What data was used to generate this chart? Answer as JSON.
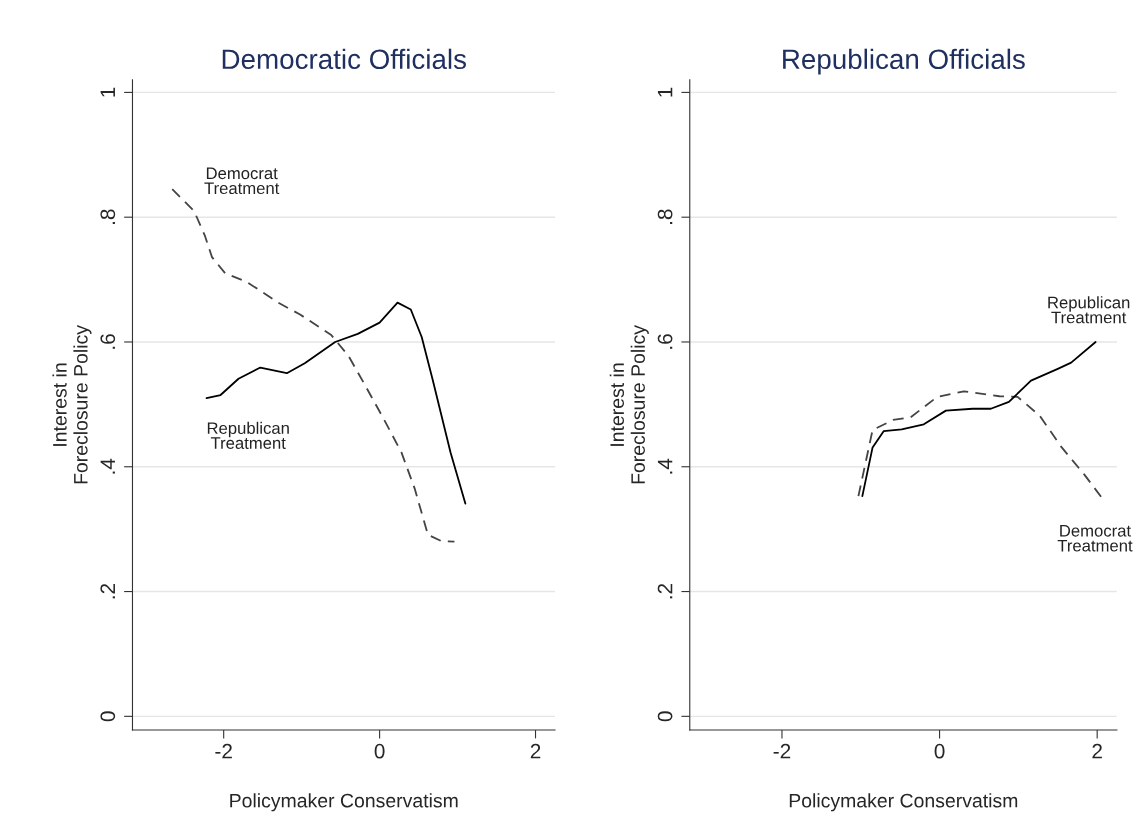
{
  "chart_data": [
    {
      "type": "line",
      "title": "Democratic Officials",
      "xlabel": "Policymaker Conservatism",
      "ylabel": "Interest in\nForeclosure Policy",
      "xlim": [
        -3.17,
        2.25
      ],
      "ylim": [
        -0.022,
        1.02
      ],
      "xticks": [
        -2,
        0,
        2
      ],
      "yticks": [
        0,
        {
          "value": 0.2,
          "label": ".2"
        },
        {
          "value": 0.4,
          "label": ".4"
        },
        {
          "value": 0.6,
          "label": ".6"
        },
        {
          "value": 0.8,
          "label": ".8"
        },
        1
      ],
      "grid": "y",
      "series": [
        {
          "name": "Democrat\nTreatment",
          "color": "#444444",
          "line_style": "dashed",
          "x": [
            -2.66,
            -2.38,
            -2.24,
            -2.15,
            -1.98,
            -1.7,
            -1.3,
            -1.02,
            -0.62,
            -0.4,
            -0.17,
            0.06,
            0.28,
            0.45,
            0.62,
            0.79,
            0.96
          ],
          "values": [
            0.845,
            0.81,
            0.77,
            0.736,
            0.71,
            0.696,
            0.663,
            0.644,
            0.611,
            0.578,
            0.527,
            0.475,
            0.423,
            0.365,
            0.291,
            0.281,
            0.28
          ]
        },
        {
          "name": "Republican\nTreatment",
          "color": "#000000",
          "line_style": "solid",
          "x": [
            -2.22,
            -2.04,
            -1.81,
            -1.53,
            -1.19,
            -0.96,
            -0.57,
            -0.28,
            0,
            0.23,
            0.4,
            0.54,
            0.68,
            0.91,
            1.1
          ],
          "values": [
            0.51,
            0.515,
            0.541,
            0.559,
            0.55,
            0.566,
            0.6,
            0.613,
            0.631,
            0.663,
            0.652,
            0.608,
            0.54,
            0.423,
            0.341
          ]
        }
      ]
    },
    {
      "type": "line",
      "title": "Republican Officials",
      "xlabel": "Policymaker Conservatism",
      "ylabel": "Interest in\nForeclosure Policy",
      "xlim": [
        -3.17,
        2.25
      ],
      "ylim": [
        -0.022,
        1.02
      ],
      "xticks": [
        -2,
        0,
        2
      ],
      "yticks": [
        0,
        {
          "value": 0.2,
          "label": ".2"
        },
        {
          "value": 0.4,
          "label": ".4"
        },
        {
          "value": 0.6,
          "label": ".6"
        },
        {
          "value": 0.8,
          "label": ".8"
        },
        1
      ],
      "grid": "y",
      "series": [
        {
          "name": "Democrat\nTreatment",
          "color": "#444444",
          "line_style": "dashed",
          "x": [
            -1.03,
            -0.85,
            -0.59,
            -0.37,
            -0.03,
            0.31,
            0.76,
            0.99,
            1.27,
            1.55,
            1.84,
            2.06
          ],
          "values": [
            0.353,
            0.459,
            0.475,
            0.479,
            0.512,
            0.521,
            0.513,
            0.512,
            0.482,
            0.431,
            0.387,
            0.35
          ]
        },
        {
          "name": "Republican\nTreatment",
          "color": "#000000",
          "line_style": "solid",
          "x": [
            -0.98,
            -0.85,
            -0.71,
            -0.48,
            -0.2,
            0.08,
            0.42,
            0.65,
            0.88,
            1.16,
            1.5,
            1.67,
            1.98
          ],
          "values": [
            0.353,
            0.431,
            0.457,
            0.46,
            0.468,
            0.49,
            0.493,
            0.493,
            0.504,
            0.538,
            0.557,
            0.567,
            0.6
          ]
        }
      ]
    }
  ]
}
